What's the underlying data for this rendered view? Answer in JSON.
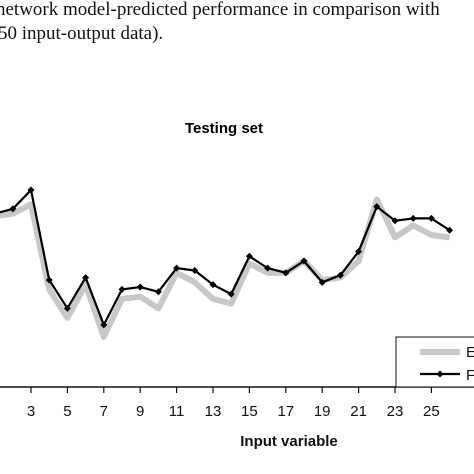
{
  "caption": {
    "line1": "network model-predicted performance in comparison with",
    "line2": "50 input-output data)."
  },
  "colors": {
    "series_a": "#c8c8c8",
    "series_b": "#000000"
  },
  "chart_data": {
    "type": "line",
    "title": "Testing set",
    "xlabel": "Input variable",
    "ylabel": "",
    "x_tick_labels": [
      "3",
      "5",
      "7",
      "9",
      "11",
      "13",
      "15",
      "17",
      "19",
      "21",
      "23",
      "25"
    ],
    "grid": false,
    "legend": {
      "placement": "bottom-right",
      "entries": [
        "E",
        "F"
      ]
    },
    "x": [
      1,
      2,
      3,
      4,
      5,
      6,
      7,
      8,
      9,
      10,
      11,
      12,
      13,
      14,
      15,
      16,
      17,
      18,
      19,
      20,
      21,
      22,
      23,
      24,
      25,
      26
    ],
    "series": [
      {
        "name": "E",
        "values": [
          -8.3,
          -8.2,
          -7.8,
          -11.4,
          -12.6,
          -11.2,
          -13.4,
          -11.8,
          -11.7,
          -12.2,
          -10.7,
          -11.1,
          -11.8,
          -12.0,
          -10.3,
          -10.7,
          -10.7,
          -10.2,
          -11.0,
          -10.9,
          -10.2,
          -7.6,
          -9.2,
          -8.7,
          -9.1,
          -9.2
        ],
        "markers": false
      },
      {
        "name": "F",
        "values": [
          -8.2,
          -8.0,
          -7.2,
          -11.0,
          -12.2,
          -10.9,
          -12.9,
          -11.4,
          -11.3,
          -11.5,
          -10.5,
          -10.6,
          -11.2,
          -11.6,
          -10.0,
          -10.5,
          -10.7,
          -10.2,
          -11.1,
          -10.8,
          -9.8,
          -7.9,
          -8.5,
          -8.4,
          -8.4,
          -8.9
        ],
        "markers": true
      }
    ]
  }
}
